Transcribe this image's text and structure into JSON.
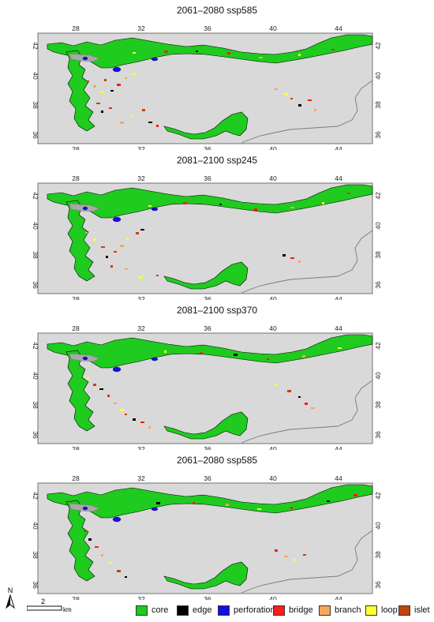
{
  "panels": [
    {
      "title": "2061–2080 ssp585"
    },
    {
      "title": "2081–2100 ssp245"
    },
    {
      "title": "2081–2100 ssp370"
    },
    {
      "title": "2061–2080 ssp585"
    }
  ],
  "axes": {
    "x_ticks": [
      "28",
      "32",
      "36",
      "40",
      "44"
    ],
    "y_ticks": [
      "42",
      "40",
      "38",
      "36"
    ]
  },
  "legend": [
    {
      "label": "core",
      "color": "#1ecb1e"
    },
    {
      "label": "edge",
      "color": "#000000"
    },
    {
      "label": "perforation",
      "color": "#1010e0"
    },
    {
      "label": "bridge",
      "color": "#ff1a1a"
    },
    {
      "label": "branch",
      "color": "#f6a85a"
    },
    {
      "label": "loop",
      "color": "#ffff33"
    },
    {
      "label": "islet",
      "color": "#c0440e"
    }
  ],
  "scale_bar": {
    "value": "2",
    "unit": "km"
  },
  "north_arrow": {
    "label": "N"
  },
  "colors": {
    "map_background": "#d9d9d9",
    "border_line": "#7a7a7a",
    "water": "#a8a8a8"
  }
}
